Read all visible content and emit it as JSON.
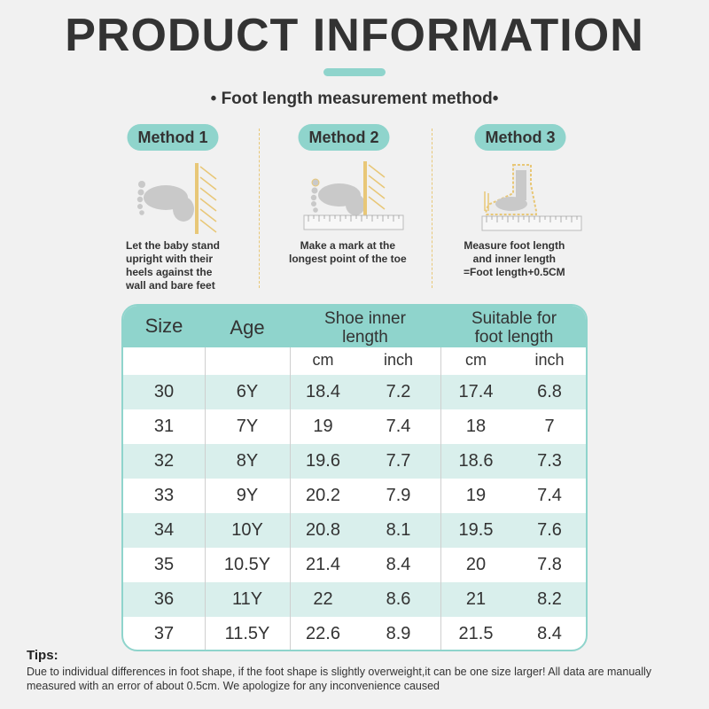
{
  "title": "PRODUCT INFORMATION",
  "subtitle": "• Foot length measurement method•",
  "methods": [
    {
      "label": "Method 1",
      "desc_lines": [
        "Let the baby stand",
        "upright with their",
        "heels against the",
        "wall and bare feet"
      ]
    },
    {
      "label": "Method 2",
      "desc_lines": [
        "Make a mark at the",
        "longest point of the toe"
      ]
    },
    {
      "label": "Method 3",
      "desc_lines": [
        "Measure foot length",
        "and inner length",
        "=Foot length+0.5CM"
      ]
    }
  ],
  "table": {
    "headers": {
      "size": "Size",
      "age": "Age",
      "shoe_inner_line1": "Shoe inner",
      "shoe_inner_line2": "length",
      "suitable_line1": "Suitable for",
      "suitable_line2": "foot length"
    },
    "units": {
      "cm1": "cm",
      "inch1": "inch",
      "cm2": "cm",
      "inch2": "inch"
    },
    "rows": [
      {
        "size": "30",
        "age": "6Y",
        "inner_cm": "18.4",
        "inner_inch": "7.2",
        "foot_cm": "17.4",
        "foot_inch": "6.8"
      },
      {
        "size": "31",
        "age": "7Y",
        "inner_cm": "19",
        "inner_inch": "7.4",
        "foot_cm": "18",
        "foot_inch": "7"
      },
      {
        "size": "32",
        "age": "8Y",
        "inner_cm": "19.6",
        "inner_inch": "7.7",
        "foot_cm": "18.6",
        "foot_inch": "7.3"
      },
      {
        "size": "33",
        "age": "9Y",
        "inner_cm": "20.2",
        "inner_inch": "7.9",
        "foot_cm": "19",
        "foot_inch": "7.4"
      },
      {
        "size": "34",
        "age": "10Y",
        "inner_cm": "20.8",
        "inner_inch": "8.1",
        "foot_cm": "19.5",
        "foot_inch": "7.6"
      },
      {
        "size": "35",
        "age": "10.5Y",
        "inner_cm": "21.4",
        "inner_inch": "8.4",
        "foot_cm": "20",
        "foot_inch": "7.8"
      },
      {
        "size": "36",
        "age": "11Y",
        "inner_cm": "22",
        "inner_inch": "8.6",
        "foot_cm": "21",
        "foot_inch": "8.2"
      },
      {
        "size": "37",
        "age": "11.5Y",
        "inner_cm": "22.6",
        "inner_inch": "8.9",
        "foot_cm": "21.5",
        "foot_inch": "8.4"
      }
    ]
  },
  "tips": {
    "label": "Tips:",
    "text": "Due to individual differences in foot shape, if the foot shape is slightly overweight,it can be one size larger! All data are manually measured with an error of about 0.5cm. We apologize for any inconvenience caused"
  },
  "colors": {
    "accent": "#8fd4cc",
    "row_alt": "#d9efec",
    "wall": "#e8c777",
    "background": "#f1f1f1"
  },
  "icons": [
    "footprint-icon",
    "wall-icon",
    "ruler-icon",
    "shoe-icon"
  ]
}
